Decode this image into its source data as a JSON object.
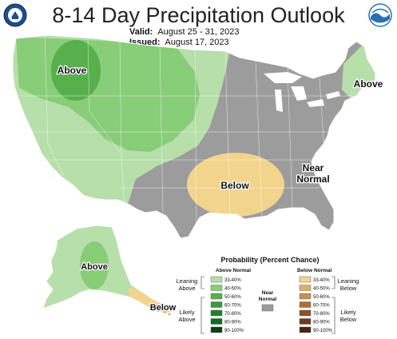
{
  "title": "8-14 Day Precipitation Outlook",
  "valid": {
    "label": "Valid:",
    "value": "August 25 - 31, 2023"
  },
  "issued": {
    "label": "Issued:",
    "value": "August 17, 2023"
  },
  "logos": {
    "left": "doc-seal-icon",
    "right": "noaa-logo-icon"
  },
  "map": {
    "region_labels": {
      "above_nw": "Above",
      "above_ne": "Above",
      "below_central": "Below",
      "near_normal_line1": "Near",
      "near_normal_line2": "Normal",
      "above_alaska": "Above",
      "below_alaska": "Below"
    }
  },
  "legend": {
    "title": "Probability (Percent Chance)",
    "above_header": "Above Normal",
    "below_header": "Below Normal",
    "near_header_line1": "Near",
    "near_header_line2": "Normal",
    "leaning_above_1": "Leaning",
    "leaning_above_2": "Above",
    "likely_above_1": "Likely",
    "likely_above_2": "Above",
    "leaning_below_1": "Leaning",
    "leaning_below_2": "Below",
    "likely_below_1": "Likely",
    "likely_below_2": "Below",
    "above_bins": [
      {
        "label": "33-40%",
        "color": "#b6dfa9"
      },
      {
        "label": "40-50%",
        "color": "#88cd78"
      },
      {
        "label": "50-60%",
        "color": "#58b04c"
      },
      {
        "label": "60-70%",
        "color": "#3a9a3c"
      },
      {
        "label": "70-80%",
        "color": "#21802e"
      },
      {
        "label": "80-90%",
        "color": "#106a22"
      },
      {
        "label": "90-100%",
        "color": "#0a3d12"
      }
    ],
    "below_bins": [
      {
        "label": "33-40%",
        "color": "#f3d48d"
      },
      {
        "label": "40-50%",
        "color": "#ddb267"
      },
      {
        "label": "50-60%",
        "color": "#c99147"
      },
      {
        "label": "60-70%",
        "color": "#b06e32"
      },
      {
        "label": "70-80%",
        "color": "#8f5225"
      },
      {
        "label": "80-90%",
        "color": "#6e3a1a"
      },
      {
        "label": "90-100%",
        "color": "#4a2410"
      }
    ],
    "near_color": "#9c9c9c"
  },
  "colors": {
    "near_normal": "#9c9c9c",
    "above_light": "#b6dfa9",
    "above_mid": "#88cd78",
    "above_dark": "#58b04c",
    "below_light": "#f3d48d"
  }
}
